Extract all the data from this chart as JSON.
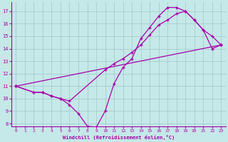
{
  "bg_color": "#c5e8e8",
  "line_color": "#aa00aa",
  "grid_color": "#a0c8c8",
  "xlim": [
    -0.5,
    23.5
  ],
  "ylim": [
    7.8,
    17.7
  ],
  "xticks": [
    0,
    1,
    2,
    3,
    4,
    5,
    6,
    7,
    8,
    9,
    10,
    11,
    12,
    13,
    14,
    15,
    16,
    17,
    18,
    19,
    20,
    21,
    22,
    23
  ],
  "yticks": [
    8,
    9,
    10,
    11,
    12,
    13,
    14,
    15,
    16,
    17
  ],
  "xlabel": "Windchill (Refroidissement éolien,°C)",
  "line1_x": [
    0,
    2,
    3,
    4,
    5,
    6,
    7,
    8,
    9,
    10,
    11,
    12,
    13,
    14,
    15,
    16,
    17,
    18,
    19,
    20,
    21,
    22,
    23
  ],
  "line1_y": [
    11.0,
    10.5,
    10.5,
    10.2,
    10.0,
    9.5,
    8.8,
    7.8,
    7.7,
    9.0,
    11.2,
    12.5,
    13.2,
    14.8,
    15.7,
    16.6,
    17.3,
    17.3,
    17.0,
    16.3,
    15.5,
    15.0,
    14.3
  ],
  "line2_x": [
    0,
    2,
    3,
    4,
    5,
    6,
    10,
    11,
    12,
    13,
    14,
    15,
    16,
    17,
    18,
    19,
    20,
    21,
    22,
    23
  ],
  "line2_y": [
    11.0,
    10.5,
    10.5,
    10.2,
    10.0,
    9.8,
    12.3,
    12.8,
    13.2,
    13.7,
    14.3,
    15.1,
    15.9,
    16.3,
    16.8,
    17.0,
    16.3,
    15.5,
    14.0,
    14.3
  ],
  "line3_x": [
    0,
    23
  ],
  "line3_y": [
    11.0,
    14.3
  ]
}
